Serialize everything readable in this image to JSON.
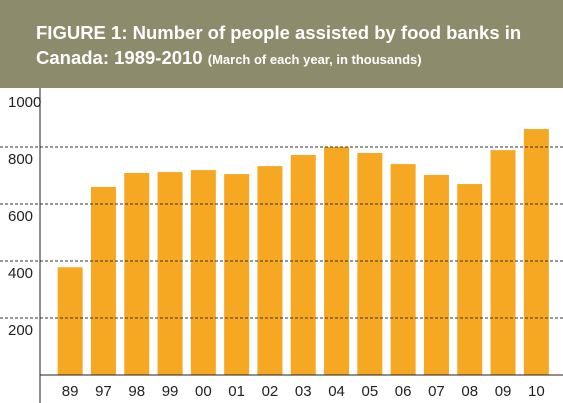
{
  "chart_data": {
    "type": "bar",
    "title": "FIGURE 1: Number of people assisted by food banks in Canada: 1989-2010",
    "subtitle": "(March of each year, in thousands)",
    "categories": [
      "89",
      "97",
      "98",
      "99",
      "00",
      "01",
      "02",
      "03",
      "04",
      "05",
      "06",
      "07",
      "08",
      "09",
      "10"
    ],
    "values": [
      378,
      660,
      709,
      712,
      719,
      705,
      733,
      772,
      800,
      779,
      740,
      702,
      670,
      789,
      863
    ],
    "color": "#f7a823",
    "ylim": [
      0,
      1000
    ],
    "yticks": [
      200,
      400,
      600,
      800,
      1000
    ],
    "grid": true
  }
}
